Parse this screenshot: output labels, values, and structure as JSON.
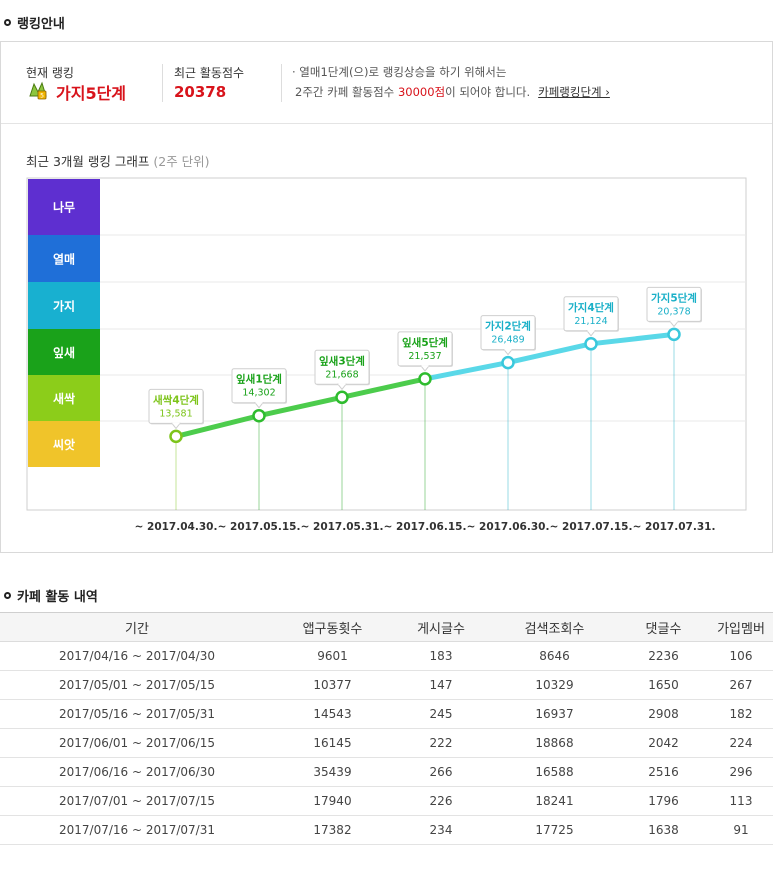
{
  "section1": {
    "title": "랭킹안내"
  },
  "ranking": {
    "current_label": "현재 랭킹",
    "current_value": "가지5단계",
    "score_label": "최근 활동점수",
    "score_value": "20378",
    "note_line1": "· 열매1단계(으)로 랭킹상승을 하기 위해서는",
    "note_line2_pre": "2주간 카페 활동점수 ",
    "note_line2_hl": "30000점",
    "note_line2_post": "이 되어야 합니다.",
    "note_link": "카페랭킹단계 ›"
  },
  "chart_data": {
    "type": "line",
    "title": "최근 3개월 랭킹 그래프",
    "subtitle": "(2주 단위)",
    "categories": [
      "~ 2017.04.30.",
      "~ 2017.05.15.",
      "~ 2017.05.31.",
      "~ 2017.06.15.",
      "~ 2017.06.30.",
      "~ 2017.07.15.",
      "~ 2017.07.31."
    ],
    "tiers": [
      {
        "name": "나무",
        "color": "#5e2fd0"
      },
      {
        "name": "열매",
        "color": "#1f6fd8"
      },
      {
        "name": "가지",
        "color": "#18b0d0"
      },
      {
        "name": "잎새",
        "color": "#1aa21a"
      },
      {
        "name": "새싹",
        "color": "#8ccd1a"
      },
      {
        "name": "씨앗",
        "color": "#f0c42a"
      }
    ],
    "points": [
      {
        "label": "새싹4단계",
        "score": "13,581",
        "level": 1.6,
        "color": "#7dc41a"
      },
      {
        "label": "잎새1단계",
        "score": "14,302",
        "level": 2.05,
        "color": "#1aa21a"
      },
      {
        "label": "잎새3단계",
        "score": "21,668",
        "level": 2.45,
        "color": "#1aa21a"
      },
      {
        "label": "잎새5단계",
        "score": "21,537",
        "level": 2.85,
        "color": "#1aa21a"
      },
      {
        "label": "가지2단계",
        "score": "26,489",
        "level": 3.2,
        "color": "#1ab0c8"
      },
      {
        "label": "가지4단계",
        "score": "21,124",
        "level": 3.6,
        "color": "#1ab0c8"
      },
      {
        "label": "가지5단계",
        "score": "20,378",
        "level": 3.8,
        "color": "#1ab0c8"
      }
    ]
  },
  "section2": {
    "title": "카페 활동 내역"
  },
  "table": {
    "headers": [
      "기간",
      "앱구동횟수",
      "게시글수",
      "검색조회수",
      "댓글수",
      "가입멤버"
    ],
    "rows": [
      [
        "2017/04/16 ~ 2017/04/30",
        "9601",
        "183",
        "8646",
        "2236",
        "106"
      ],
      [
        "2017/05/01 ~ 2017/05/15",
        "10377",
        "147",
        "10329",
        "1650",
        "267"
      ],
      [
        "2017/05/16 ~ 2017/05/31",
        "14543",
        "245",
        "16937",
        "2908",
        "182"
      ],
      [
        "2017/06/01 ~ 2017/06/15",
        "16145",
        "222",
        "18868",
        "2042",
        "224"
      ],
      [
        "2017/06/16 ~ 2017/06/30",
        "35439",
        "266",
        "16588",
        "2516",
        "296"
      ],
      [
        "2017/07/01 ~ 2017/07/15",
        "17940",
        "226",
        "18241",
        "1796",
        "113"
      ],
      [
        "2017/07/16 ~ 2017/07/31",
        "17382",
        "234",
        "17725",
        "1638",
        "91"
      ]
    ]
  }
}
